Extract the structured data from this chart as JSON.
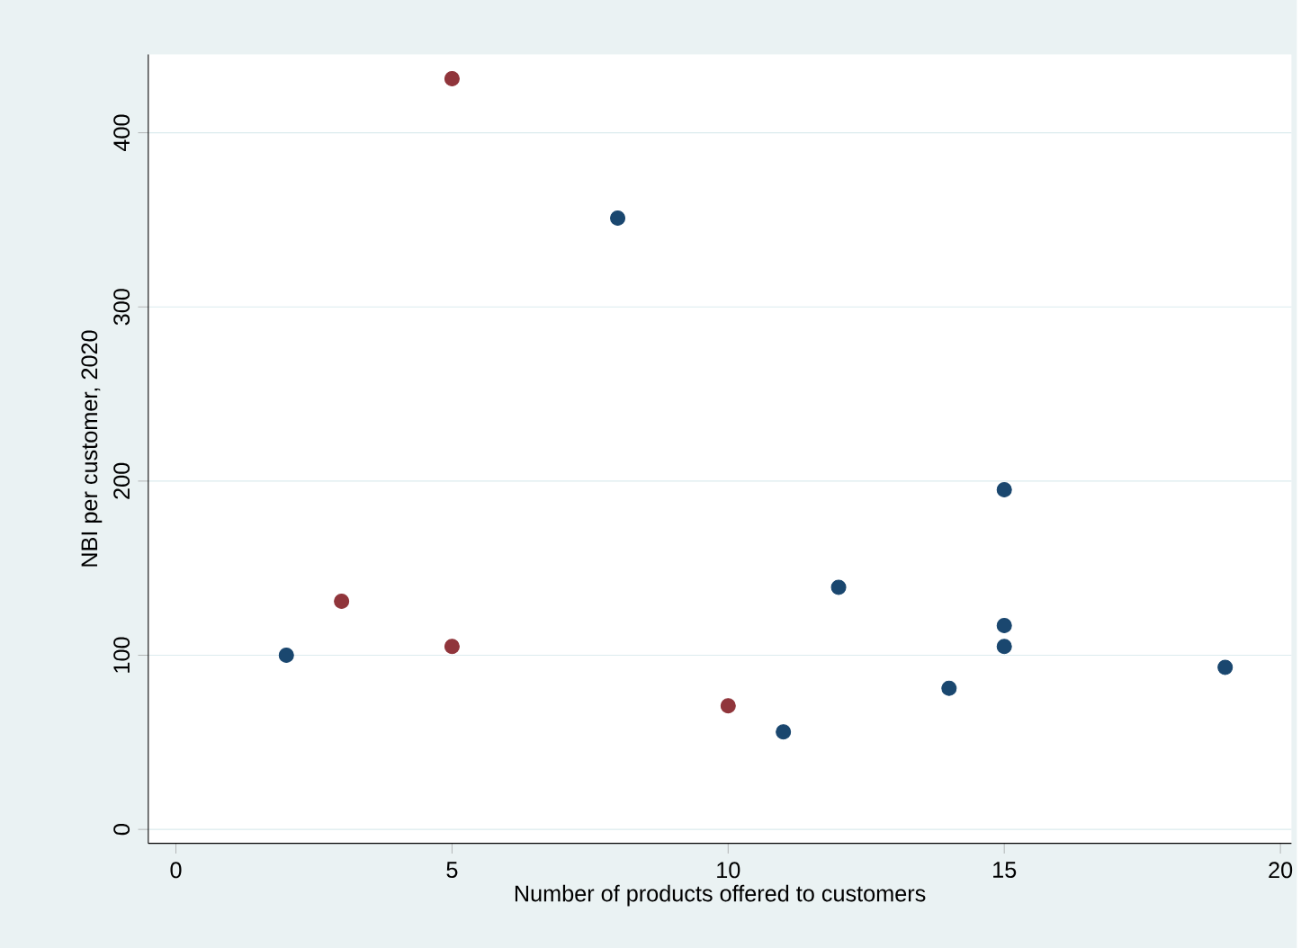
{
  "chart_data": {
    "type": "scatter",
    "xlabel": "Number of products offered to customers",
    "ylabel": "NBI per customer, 2020",
    "series": [
      {
        "color": "#1a476f",
        "x": [
          2,
          8,
          11,
          12,
          14,
          15,
          15,
          15,
          19
        ],
        "values": [
          100,
          351,
          56,
          139,
          81,
          195,
          117,
          105,
          93
        ]
      },
      {
        "color": "#90353b",
        "x": [
          3,
          5,
          5,
          10
        ],
        "values": [
          131,
          431,
          105,
          71
        ]
      }
    ],
    "xlim": [
      -0.5,
      20.2
    ],
    "ylim": [
      -8,
      445
    ],
    "xticks": [
      0,
      5,
      10,
      15,
      20
    ],
    "yticks": [
      0,
      100,
      200,
      300,
      400
    ],
    "grid": "y",
    "marker": "circle"
  }
}
